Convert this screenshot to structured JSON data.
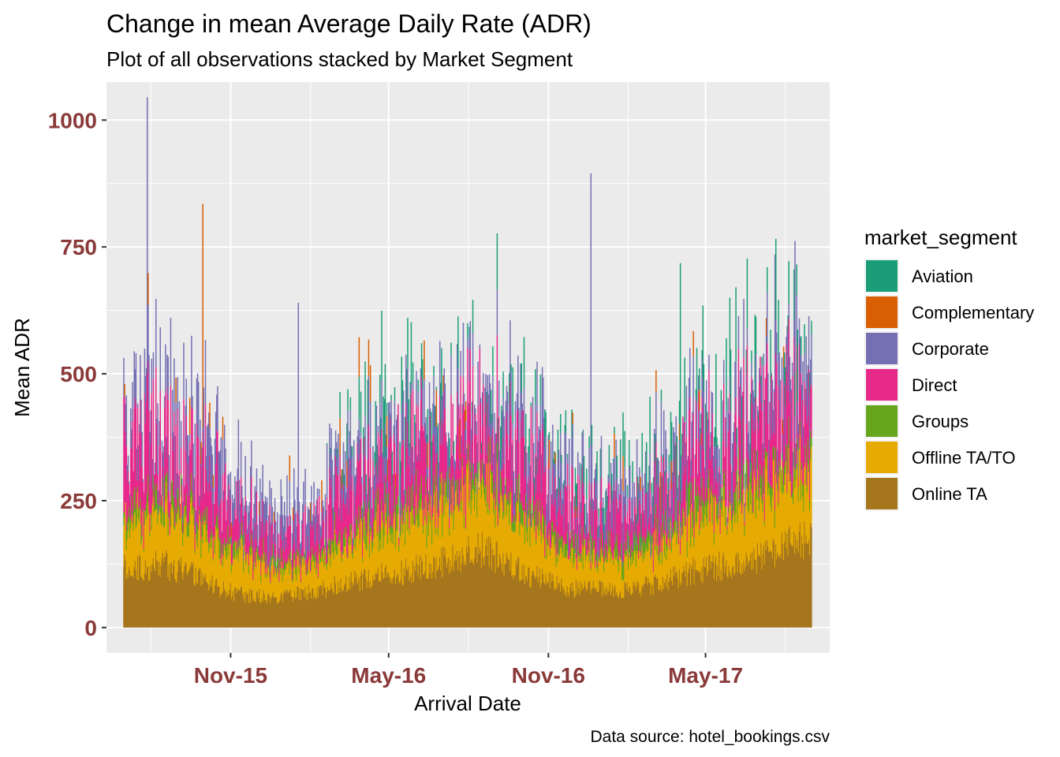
{
  "chart_data": {
    "type": "bar",
    "stacked": true,
    "title": "Change in mean Average Daily Rate (ADR)",
    "subtitle": "Plot of all observations stacked by Market Segment",
    "xlabel": "Arrival Date",
    "ylabel": "Mean ADR",
    "caption": "Data source: hotel_bookings.csv",
    "x_range": [
      "2015-07-01",
      "2017-08-31"
    ],
    "ylim": [
      -50,
      1075
    ],
    "y_ticks": [
      0,
      250,
      500,
      750,
      1000
    ],
    "x_ticks": [
      {
        "date": "2015-11-01",
        "label": "Nov-15"
      },
      {
        "date": "2016-05-01",
        "label": "May-16"
      },
      {
        "date": "2016-11-01",
        "label": "Nov-16"
      },
      {
        "date": "2017-05-01",
        "label": "May-17"
      }
    ],
    "grid": true,
    "legend": {
      "title": "market_segment",
      "position": "right"
    },
    "series": [
      {
        "name": "Aviation",
        "color": "#1B9E77"
      },
      {
        "name": "Complementary",
        "color": "#D95F02"
      },
      {
        "name": "Corporate",
        "color": "#7570B3"
      },
      {
        "name": "Direct",
        "color": "#E7298A"
      },
      {
        "name": "Groups",
        "color": "#66A61E"
      },
      {
        "name": "Offline TA/TO",
        "color": "#E6AB02"
      },
      {
        "name": "Online TA",
        "color": "#A6761D"
      }
    ],
    "monthly_mean_stacked": [
      {
        "month": "2015-07",
        "Online TA": 115,
        "Offline TA/TO": 95,
        "Groups": 25,
        "Direct": 110,
        "Corporate": 55,
        "Complementary": 0,
        "Aviation": 0
      },
      {
        "month": "2015-08",
        "Online TA": 125,
        "Offline TA/TO": 100,
        "Groups": 30,
        "Direct": 120,
        "Corporate": 70,
        "Complementary": 0,
        "Aviation": 0
      },
      {
        "month": "2015-09",
        "Online TA": 110,
        "Offline TA/TO": 95,
        "Groups": 25,
        "Direct": 110,
        "Corporate": 70,
        "Complementary": 5,
        "Aviation": 0
      },
      {
        "month": "2015-10",
        "Online TA": 80,
        "Offline TA/TO": 85,
        "Groups": 20,
        "Direct": 90,
        "Corporate": 65,
        "Complementary": 5,
        "Aviation": 0
      },
      {
        "month": "2015-11",
        "Online TA": 65,
        "Offline TA/TO": 70,
        "Groups": 15,
        "Direct": 60,
        "Corporate": 55,
        "Complementary": 0,
        "Aviation": 0
      },
      {
        "month": "2015-12",
        "Online TA": 60,
        "Offline TA/TO": 55,
        "Groups": 15,
        "Direct": 55,
        "Corporate": 50,
        "Complementary": 0,
        "Aviation": 0
      },
      {
        "month": "2016-01",
        "Online TA": 65,
        "Offline TA/TO": 45,
        "Groups": 15,
        "Direct": 50,
        "Corporate": 45,
        "Complementary": 0,
        "Aviation": 0
      },
      {
        "month": "2016-02",
        "Online TA": 75,
        "Offline TA/TO": 60,
        "Groups": 15,
        "Direct": 60,
        "Corporate": 50,
        "Complementary": 0,
        "Aviation": 0
      },
      {
        "month": "2016-03",
        "Online TA": 90,
        "Offline TA/TO": 75,
        "Groups": 20,
        "Direct": 85,
        "Corporate": 55,
        "Complementary": 0,
        "Aviation": 40
      },
      {
        "month": "2016-04",
        "Online TA": 100,
        "Offline TA/TO": 90,
        "Groups": 25,
        "Direct": 90,
        "Corporate": 55,
        "Complementary": 0,
        "Aviation": 70
      },
      {
        "month": "2016-05",
        "Online TA": 110,
        "Offline TA/TO": 90,
        "Groups": 25,
        "Direct": 95,
        "Corporate": 55,
        "Complementary": 0,
        "Aviation": 70
      },
      {
        "month": "2016-06",
        "Online TA": 120,
        "Offline TA/TO": 100,
        "Groups": 25,
        "Direct": 95,
        "Corporate": 55,
        "Complementary": 0,
        "Aviation": 60
      },
      {
        "month": "2016-07",
        "Online TA": 140,
        "Offline TA/TO": 115,
        "Groups": 25,
        "Direct": 110,
        "Corporate": 55,
        "Complementary": 0,
        "Aviation": 50
      },
      {
        "month": "2016-08",
        "Online TA": 155,
        "Offline TA/TO": 120,
        "Groups": 25,
        "Direct": 115,
        "Corporate": 55,
        "Complementary": 0,
        "Aviation": 50
      },
      {
        "month": "2016-09",
        "Online TA": 130,
        "Offline TA/TO": 105,
        "Groups": 25,
        "Direct": 110,
        "Corporate": 60,
        "Complementary": 0,
        "Aviation": 60
      },
      {
        "month": "2016-10",
        "Online TA": 100,
        "Offline TA/TO": 85,
        "Groups": 25,
        "Direct": 95,
        "Corporate": 60,
        "Complementary": 0,
        "Aviation": 50
      },
      {
        "month": "2016-11",
        "Online TA": 80,
        "Offline TA/TO": 70,
        "Groups": 20,
        "Direct": 70,
        "Corporate": 55,
        "Complementary": 0,
        "Aviation": 30
      },
      {
        "month": "2016-12",
        "Online TA": 75,
        "Offline TA/TO": 60,
        "Groups": 20,
        "Direct": 70,
        "Corporate": 50,
        "Complementary": 0,
        "Aviation": 30
      },
      {
        "month": "2017-01",
        "Online TA": 75,
        "Offline TA/TO": 55,
        "Groups": 20,
        "Direct": 60,
        "Corporate": 50,
        "Complementary": 0,
        "Aviation": 40
      },
      {
        "month": "2017-02",
        "Online TA": 80,
        "Offline TA/TO": 60,
        "Groups": 20,
        "Direct": 65,
        "Corporate": 50,
        "Complementary": 0,
        "Aviation": 50
      },
      {
        "month": "2017-03",
        "Online TA": 90,
        "Offline TA/TO": 75,
        "Groups": 25,
        "Direct": 75,
        "Corporate": 55,
        "Complementary": 0,
        "Aviation": 60
      },
      {
        "month": "2017-04",
        "Online TA": 110,
        "Offline TA/TO": 90,
        "Groups": 30,
        "Direct": 95,
        "Corporate": 55,
        "Complementary": 0,
        "Aviation": 80
      },
      {
        "month": "2017-05",
        "Online TA": 120,
        "Offline TA/TO": 100,
        "Groups": 30,
        "Direct": 100,
        "Corporate": 55,
        "Complementary": 0,
        "Aviation": 90
      },
      {
        "month": "2017-06",
        "Online TA": 130,
        "Offline TA/TO": 110,
        "Groups": 30,
        "Direct": 110,
        "Corporate": 55,
        "Complementary": 0,
        "Aviation": 90
      },
      {
        "month": "2017-07",
        "Online TA": 150,
        "Offline TA/TO": 125,
        "Groups": 30,
        "Direct": 115,
        "Corporate": 55,
        "Complementary": 0,
        "Aviation": 80
      },
      {
        "month": "2017-08",
        "Online TA": 170,
        "Offline TA/TO": 130,
        "Groups": 30,
        "Direct": 115,
        "Corporate": 60,
        "Complementary": 0,
        "Aviation": 70
      }
    ],
    "spikes": [
      {
        "date": "2015-07-28",
        "total": 1045,
        "top_series": "Corporate"
      },
      {
        "date": "2015-09-30",
        "total": 835,
        "top_series": "Complementary"
      },
      {
        "date": "2016-01-18",
        "total": 640,
        "top_series": "Corporate"
      },
      {
        "date": "2016-03-28",
        "total": 572,
        "top_series": "Complementary"
      },
      {
        "date": "2016-12-20",
        "total": 895,
        "top_series": "Corporate"
      },
      {
        "date": "2017-04-02",
        "total": 718,
        "top_series": "Aviation"
      },
      {
        "date": "2017-07-20",
        "total": 735,
        "top_series": "Corporate"
      },
      {
        "date": "2017-08-12",
        "total": 762,
        "top_series": "Corporate"
      }
    ]
  }
}
